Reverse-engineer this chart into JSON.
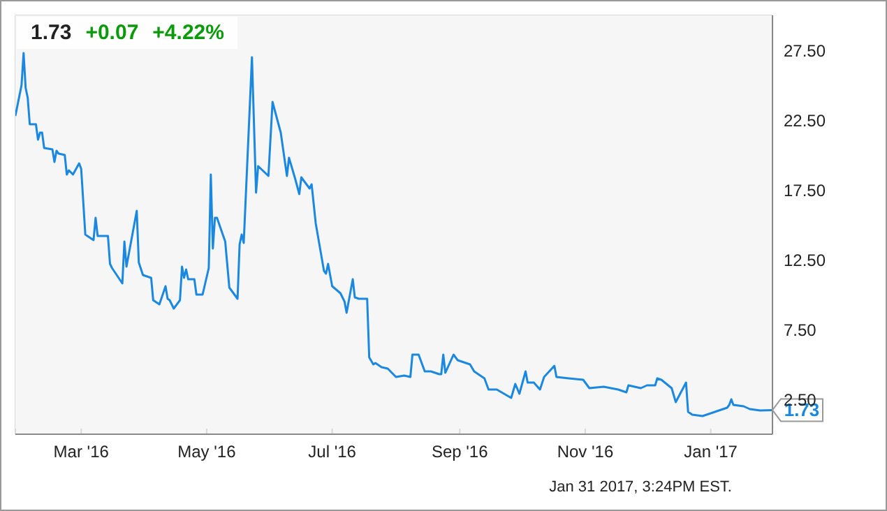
{
  "chart_data": {
    "type": "line",
    "annotations": [
      "1.73",
      "+0.07",
      "+4.22%",
      {
        "text": "1.73",
        "x": "2017-01-31",
        "y": 1.73
      },
      "Jan 31 2017, 3:24PM EST."
    ],
    "x": [
      "2016-01-29",
      "2016-02-01",
      "2016-02-02",
      "2016-02-03",
      "2016-02-04",
      "2016-02-05",
      "2016-02-08",
      "2016-02-09",
      "2016-02-10",
      "2016-02-11",
      "2016-02-12",
      "2016-02-16",
      "2016-02-17",
      "2016-02-18",
      "2016-02-19",
      "2016-02-22",
      "2016-02-23",
      "2016-02-24",
      "2016-02-26",
      "2016-02-29",
      "2016-03-01",
      "2016-03-03",
      "2016-03-07",
      "2016-03-08",
      "2016-03-09",
      "2016-03-14",
      "2016-03-15",
      "2016-03-16",
      "2016-03-21",
      "2016-03-22",
      "2016-03-23",
      "2016-03-28",
      "2016-03-29",
      "2016-03-31",
      "2016-04-04",
      "2016-04-05",
      "2016-04-08",
      "2016-04-11",
      "2016-04-12",
      "2016-04-13",
      "2016-04-15",
      "2016-04-18",
      "2016-04-19",
      "2016-04-20",
      "2016-04-21",
      "2016-04-22",
      "2016-04-25",
      "2016-04-26",
      "2016-04-29",
      "2016-05-02",
      "2016-05-03",
      "2016-05-04",
      "2016-05-05",
      "2016-05-06",
      "2016-05-10",
      "2016-05-12",
      "2016-05-16",
      "2016-05-17",
      "2016-05-18",
      "2016-05-19",
      "2016-05-23",
      "2016-05-25",
      "2016-05-26",
      "2016-05-31",
      "2016-06-02",
      "2016-06-06",
      "2016-06-09",
      "2016-06-10",
      "2016-06-13",
      "2016-06-15",
      "2016-06-16",
      "2016-06-20",
      "2016-06-21",
      "2016-06-23",
      "2016-06-27",
      "2016-06-28",
      "2016-06-29",
      "2016-07-01",
      "2016-07-05",
      "2016-07-07",
      "2016-07-08",
      "2016-07-11",
      "2016-07-12",
      "2016-07-14",
      "2016-07-18",
      "2016-07-19",
      "2016-07-21",
      "2016-07-22",
      "2016-07-25",
      "2016-07-28",
      "2016-08-01",
      "2016-08-05",
      "2016-08-08",
      "2016-08-09",
      "2016-08-12",
      "2016-08-15",
      "2016-08-18",
      "2016-08-22",
      "2016-08-23",
      "2016-08-24",
      "2016-08-25",
      "2016-08-29",
      "2016-08-31",
      "2016-09-06",
      "2016-09-08",
      "2016-09-13",
      "2016-09-15",
      "2016-09-19",
      "2016-09-26",
      "2016-09-28",
      "2016-09-30",
      "2016-10-03",
      "2016-10-04",
      "2016-10-07",
      "2016-10-10",
      "2016-10-12",
      "2016-10-17",
      "2016-10-18",
      "2016-10-24",
      "2016-10-31",
      "2016-11-03",
      "2016-11-10",
      "2016-11-17",
      "2016-11-21",
      "2016-11-22",
      "2016-11-28",
      "2016-12-01",
      "2016-12-05",
      "2016-12-06",
      "2016-12-08",
      "2016-12-13",
      "2016-12-15",
      "2016-12-20",
      "2016-12-21",
      "2016-12-23",
      "2016-12-28",
      "2017-01-03",
      "2017-01-09",
      "2017-01-10",
      "2017-01-11",
      "2017-01-12",
      "2017-01-17",
      "2017-01-20",
      "2017-01-25",
      "2017-01-31"
    ],
    "series": [
      {
        "color": "#1a88e0",
        "values": [
          22.8,
          25.0,
          27.3,
          24.8,
          24.1,
          22.2,
          22.2,
          21.1,
          21.6,
          21.6,
          20.5,
          20.4,
          19.5,
          20.3,
          20.1,
          20.0,
          18.6,
          18.9,
          18.6,
          19.4,
          19.0,
          14.3,
          13.9,
          15.5,
          14.2,
          14.2,
          12.2,
          11.9,
          10.8,
          13.8,
          12.0,
          16.0,
          12.3,
          11.4,
          11.2,
          9.6,
          9.3,
          10.6,
          9.7,
          9.6,
          9.0,
          9.6,
          12.0,
          11.2,
          11.8,
          11.1,
          11.1,
          10.0,
          10.0,
          11.9,
          18.6,
          13.3,
          15.5,
          15.5,
          13.8,
          10.5,
          9.7,
          13.6,
          14.3,
          13.7,
          27.0,
          17.3,
          19.2,
          18.5,
          23.8,
          21.6,
          18.5,
          19.8,
          18.3,
          17.2,
          18.4,
          17.6,
          17.9,
          15.1,
          11.7,
          11.5,
          12.2,
          10.6,
          10.1,
          9.5,
          8.7,
          11.1,
          9.8,
          9.7,
          9.7,
          5.5,
          5.0,
          5.1,
          4.8,
          4.7,
          4.1,
          4.2,
          4.1,
          5.7,
          5.7,
          4.5,
          4.5,
          4.3,
          4.3,
          5.7,
          4.4,
          5.7,
          5.3,
          5.0,
          4.5,
          4.0,
          3.2,
          3.2,
          2.6,
          3.6,
          2.9,
          4.5,
          3.7,
          3.7,
          3.2,
          4.1,
          4.9,
          4.1,
          4.0,
          3.9,
          3.3,
          3.4,
          3.2,
          3.0,
          3.5,
          3.3,
          3.5,
          3.5,
          4.0,
          3.9,
          3.3,
          2.3,
          3.7,
          1.6,
          1.4,
          1.3,
          1.6,
          1.9,
          2.1,
          2.5,
          2.1,
          2.0,
          1.8,
          1.7,
          1.73
        ]
      }
    ],
    "xlim": [
      "2016-01-29",
      "2017-01-31"
    ],
    "xticks": [
      {
        "value": "2016-03-01",
        "label": "Mar '16"
      },
      {
        "value": "2016-05-01",
        "label": "May '16"
      },
      {
        "value": "2016-07-01",
        "label": "Jul '16"
      },
      {
        "value": "2016-09-01",
        "label": "Sep '16"
      },
      {
        "value": "2016-11-01",
        "label": "Nov '16"
      },
      {
        "value": "2017-01-01",
        "label": "Jan '17"
      }
    ],
    "ylim": [
      0,
      30
    ],
    "yticks": [
      {
        "value": 2.5,
        "label": "2.50"
      },
      {
        "value": 7.5,
        "label": "7.50"
      },
      {
        "value": 12.5,
        "label": "12.50"
      },
      {
        "value": 17.5,
        "label": "17.50"
      },
      {
        "value": 22.5,
        "label": "22.50"
      },
      {
        "value": 27.5,
        "label": "27.50"
      }
    ],
    "grid": true
  }
}
